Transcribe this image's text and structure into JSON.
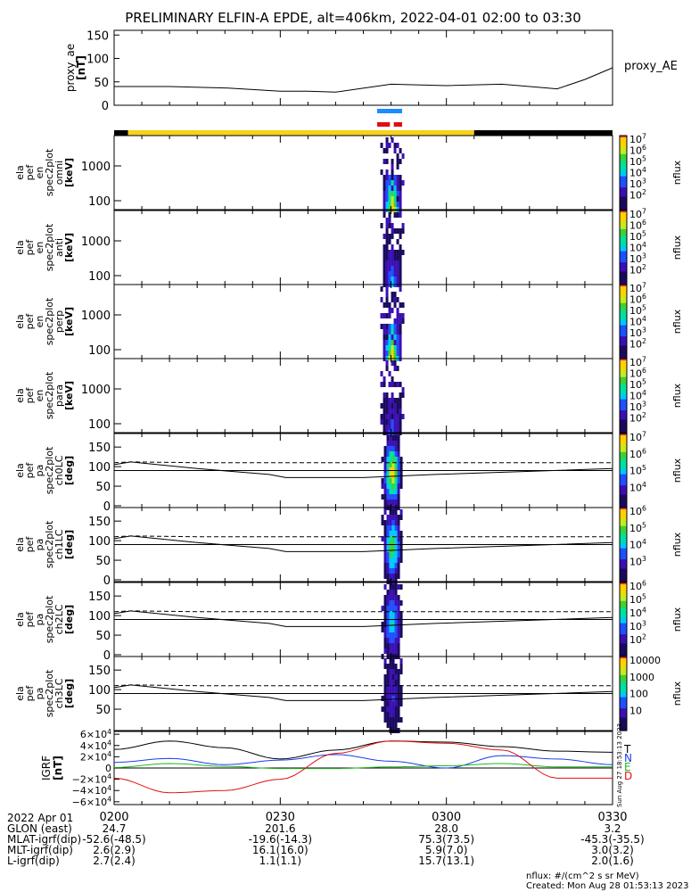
{
  "title": "PRELIMINARY ELFIN-A EPDE, alt=406km, 2022-04-01 02:00 to 03:30",
  "time_ticks": [
    "0200",
    "0230",
    "0300",
    "0330"
  ],
  "date_label": "2022 Apr 01",
  "orbit_rows": [
    {
      "label": "GLON (east)",
      "values": [
        "24.7",
        "201.6",
        "28.0",
        "3.2"
      ]
    },
    {
      "label": "MLAT-igrf(dip)",
      "values": [
        "-52.6(-48.5)",
        "-19.6(-14.3)",
        "75.3(73.5)",
        "-45.3(-35.5)"
      ]
    },
    {
      "label": "MLT-igrf(dip)",
      "values": [
        "2.6(2.9)",
        "16.1(16.0)",
        "5.9(7.0)",
        "3.0(3.2)"
      ]
    },
    {
      "label": "L-igrf(dip)",
      "values": [
        "2.7(2.4)",
        "1.1(1.1)",
        "15.7(13.1)",
        "2.0(1.6)"
      ]
    }
  ],
  "footer": {
    "units": "nflux: #/(cm^2 s sr MeV)",
    "created": "Created: Mon Aug 28 01:53:13 2023",
    "side_stamp": "Sun Aug 27 18:53:13 2023"
  },
  "colorbar_label": "nflux",
  "chart_data": {
    "type": "heatmap",
    "proxy_ae": {
      "ylabel": "proxy_ae",
      "units": "[nT]",
      "legend": "proxy_AE",
      "yticks": [
        "0",
        "50",
        "100",
        "150"
      ],
      "ylim": [
        0,
        160
      ],
      "x": [
        0,
        10,
        20,
        30,
        35,
        40,
        50,
        60,
        70,
        75,
        80,
        85,
        90
      ],
      "values": [
        40,
        40,
        37,
        30,
        30,
        28,
        45,
        42,
        45,
        40,
        35,
        55,
        80
      ]
    },
    "spectra": [
      {
        "ylabels": [
          "ela",
          "pef",
          "en",
          "spec2plot",
          "omni"
        ],
        "units": "[keV]",
        "yticks": [
          "100",
          "1000"
        ],
        "cbar_ticks": [
          "10^7",
          "10^6",
          "10^5",
          "10^4",
          "10^3",
          "10^2"
        ],
        "intensity": 1.0
      },
      {
        "ylabels": [
          "ela",
          "pef",
          "en",
          "spec2plot",
          "anti"
        ],
        "units": "[keV]",
        "yticks": [
          "100",
          "1000"
        ],
        "cbar_ticks": [
          "10^7",
          "10^6",
          "10^5",
          "10^4",
          "10^3",
          "10^2"
        ],
        "intensity": 0.45
      },
      {
        "ylabels": [
          "ela",
          "pef",
          "en",
          "spec2plot",
          "perp"
        ],
        "units": "[keV]",
        "yticks": [
          "100",
          "1000"
        ],
        "cbar_ticks": [
          "10^7",
          "10^6",
          "10^5",
          "10^4",
          "10^3",
          "10^2"
        ],
        "intensity": 1.0
      },
      {
        "ylabels": [
          "ela",
          "pef",
          "en",
          "spec2plot",
          "para"
        ],
        "units": "[keV]",
        "yticks": [
          "100",
          "1000"
        ],
        "cbar_ticks": [
          "10^7",
          "10^6",
          "10^5",
          "10^4",
          "10^3",
          "10^2"
        ],
        "intensity": 0.4
      }
    ],
    "pitch_angle": [
      {
        "ylabels": [
          "ela",
          "pef",
          "pa",
          "spec2plot",
          "ch0LC"
        ],
        "units": "[deg]",
        "yticks": [
          "0",
          "50",
          "100",
          "150"
        ],
        "cbar_ticks": [
          "10^7",
          "10^6",
          "10^5",
          "10^4"
        ],
        "intensity": 1.0
      },
      {
        "ylabels": [
          "ela",
          "pef",
          "pa",
          "spec2plot",
          "ch1LC"
        ],
        "units": "[deg]",
        "yticks": [
          "0",
          "50",
          "100",
          "150"
        ],
        "cbar_ticks": [
          "10^6",
          "10^5",
          "10^4",
          "10^3"
        ],
        "intensity": 0.8
      },
      {
        "ylabels": [
          "ela",
          "pef",
          "pa",
          "spec2plot",
          "ch2LC"
        ],
        "units": "[deg]",
        "yticks": [
          "0",
          "50",
          "100",
          "150"
        ],
        "cbar_ticks": [
          "10^6",
          "10^5",
          "10^4",
          "10^3",
          "10^2"
        ],
        "intensity": 0.6
      },
      {
        "ylabels": [
          "ela",
          "pef",
          "pa",
          "spec2plot",
          "ch3LC"
        ],
        "units": "[deg]",
        "yticks": [
          "50",
          "100",
          "150"
        ],
        "cbar_ticks": [
          "10000",
          "1000",
          "100",
          "10"
        ],
        "intensity": 0.3
      }
    ],
    "loss_cone": {
      "x": [
        0,
        3,
        15,
        28,
        31,
        45,
        58,
        90
      ],
      "solid": [
        105,
        112,
        95,
        80,
        72,
        72,
        80,
        95
      ],
      "dashed": [
        110,
        112,
        110,
        110,
        110,
        110,
        110,
        110
      ]
    },
    "igrf": {
      "ylabels": [
        "IGRF",
        "[nT]"
      ],
      "yticks": [
        "6×10^4",
        "4×10^4",
        "2×10^4",
        "0",
        "−2×10^4",
        "−4×10^4",
        "−6×10^4"
      ],
      "ylim": [
        -65000,
        65000
      ],
      "legend": [
        {
          "name": "T",
          "color": "#000000"
        },
        {
          "name": "N",
          "color": "#1a3cf0"
        },
        {
          "name": "E",
          "color": "#1fb81f"
        },
        {
          "name": "D",
          "color": "#e01010"
        }
      ],
      "x": [
        0,
        10,
        20,
        30,
        40,
        50,
        60,
        70,
        80,
        90
      ],
      "T": [
        33000,
        48000,
        36000,
        16000,
        32000,
        48000,
        46000,
        38000,
        30000,
        28000
      ],
      "N": [
        10000,
        17000,
        6000,
        14000,
        24000,
        12000,
        0,
        22000,
        16000,
        6000
      ],
      "E": [
        1000,
        8000,
        3000,
        -1000,
        -1000,
        2000,
        4000,
        8000,
        2000,
        2000
      ],
      "D": [
        -18000,
        -44000,
        -40000,
        -20000,
        26000,
        48000,
        44000,
        32000,
        -18000,
        -18000
      ]
    },
    "ephemeris_bar": {
      "segments": [
        {
          "start": 0,
          "end": 2.5,
          "color": "black"
        },
        {
          "start": 2.5,
          "end": 65,
          "color": "gold"
        },
        {
          "start": 65,
          "end": 90,
          "color": "black"
        }
      ]
    },
    "flag_bars": [
      {
        "color": "blue",
        "ranges": [
          [
            47.5,
            52
          ]
        ]
      },
      {
        "color": "red",
        "ranges": [
          [
            47.5,
            49.8
          ],
          [
            50.5,
            52
          ]
        ]
      }
    ],
    "xlim": [
      0,
      90
    ]
  }
}
